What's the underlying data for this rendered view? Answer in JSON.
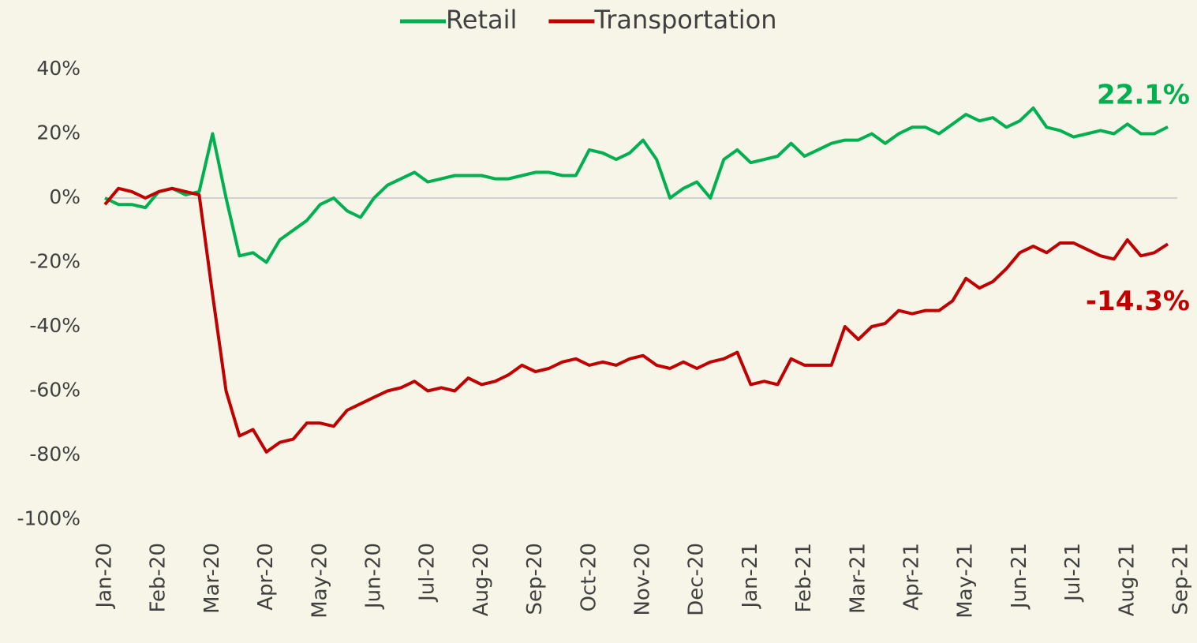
{
  "chart_data": {
    "type": "line",
    "categories": [
      "Jan-20",
      null,
      null,
      null,
      "Feb-20",
      null,
      null,
      null,
      "Mar-20",
      null,
      null,
      null,
      "Apr-20",
      null,
      null,
      null,
      "May-20",
      null,
      null,
      null,
      "Jun-20",
      null,
      null,
      null,
      "Jul-20",
      null,
      null,
      null,
      "Aug-20",
      null,
      null,
      null,
      "Sep-20",
      null,
      null,
      null,
      "Oct-20",
      null,
      null,
      null,
      "Nov-20",
      null,
      null,
      null,
      "Dec-20",
      null,
      null,
      null,
      "Jan-21",
      null,
      null,
      null,
      "Feb-21",
      null,
      null,
      null,
      "Mar-21",
      null,
      null,
      null,
      "Apr-21",
      null,
      null,
      null,
      "May-21",
      null,
      null,
      null,
      "Jun-21",
      null,
      null,
      null,
      "Jul-21",
      null,
      null,
      null,
      "Aug-21",
      null,
      null,
      null,
      "Sep-21"
    ],
    "series": [
      {
        "name": "Retail",
        "color": "#00b050",
        "values": [
          0,
          -2,
          -2,
          -3,
          2,
          3,
          1,
          2,
          20,
          0,
          -18,
          -17,
          -20,
          -13,
          -10,
          -7,
          -2,
          0,
          -4,
          -6,
          0,
          4,
          6,
          8,
          5,
          6,
          7,
          7,
          7,
          6,
          6,
          7,
          8,
          8,
          7,
          7,
          15,
          14,
          12,
          14,
          18,
          12,
          0,
          3,
          5,
          0,
          12,
          15,
          11,
          12,
          13,
          17,
          13,
          15,
          17,
          18,
          18,
          20,
          17,
          20,
          22,
          22,
          20,
          23,
          26,
          24,
          25,
          22,
          24,
          28,
          22,
          21,
          19,
          20,
          21,
          20,
          23,
          20,
          20,
          22.1,
          null
        ],
        "value_labels": [
          null,
          null,
          null,
          null,
          null,
          null,
          null,
          null,
          null,
          null,
          null,
          null,
          null,
          null,
          null,
          null,
          null,
          null,
          null,
          null,
          null,
          null,
          null,
          null,
          null,
          null,
          null,
          null,
          null,
          null,
          null,
          null,
          null,
          null,
          null,
          null,
          null,
          null,
          null,
          null,
          null,
          null,
          null,
          null,
          null,
          null,
          null,
          null,
          null,
          null,
          null,
          null,
          null,
          null,
          null,
          null,
          null,
          null,
          null,
          null,
          null,
          null,
          null,
          null,
          null,
          null,
          null,
          null,
          null,
          null,
          null,
          null,
          null,
          null,
          null,
          null,
          null,
          null,
          null,
          "22.1%",
          null
        ]
      },
      {
        "name": "Transportation",
        "color": "#c00000",
        "values": [
          -2,
          3,
          2,
          0,
          2,
          3,
          2,
          1,
          -30,
          -60,
          -74,
          -72,
          -79,
          -76,
          -75,
          -70,
          -70,
          -71,
          -66,
          -64,
          -62,
          -60,
          -59,
          -57,
          -60,
          -59,
          -60,
          -56,
          -58,
          -57,
          -55,
          -52,
          -54,
          -53,
          -51,
          -50,
          -52,
          -51,
          -52,
          -50,
          -49,
          -52,
          -53,
          -51,
          -53,
          -51,
          -50,
          -48,
          -58,
          -57,
          -58,
          -50,
          -52,
          -52,
          -52,
          -40,
          -44,
          -40,
          -39,
          -35,
          -36,
          -35,
          -35,
          -32,
          -25,
          -28,
          -26,
          -22,
          -17,
          -15,
          -17,
          -14,
          -14,
          -16,
          -18,
          -19,
          -13,
          -18,
          -17,
          -14.3,
          null
        ],
        "value_labels": [
          null,
          null,
          null,
          null,
          null,
          null,
          null,
          null,
          null,
          null,
          null,
          null,
          null,
          null,
          null,
          null,
          null,
          null,
          null,
          null,
          null,
          null,
          null,
          null,
          null,
          null,
          null,
          null,
          null,
          null,
          null,
          null,
          null,
          null,
          null,
          null,
          null,
          null,
          null,
          null,
          null,
          null,
          null,
          null,
          null,
          null,
          null,
          null,
          null,
          null,
          null,
          null,
          null,
          null,
          null,
          null,
          null,
          null,
          null,
          null,
          null,
          null,
          null,
          null,
          null,
          null,
          null,
          null,
          null,
          null,
          null,
          null,
          null,
          null,
          null,
          null,
          null,
          null,
          null,
          "-14.3%",
          null
        ]
      }
    ],
    "ylim": [
      -100,
      40
    ],
    "yticks": [
      {
        "value": -100,
        "label": "-100%"
      },
      {
        "value": -80,
        "label": "-80%"
      },
      {
        "value": -60,
        "label": "-60%"
      },
      {
        "value": -40,
        "label": "-40%"
      },
      {
        "value": -20,
        "label": "-20%"
      },
      {
        "value": 0,
        "label": "0%"
      },
      {
        "value": 20,
        "label": "20%"
      },
      {
        "value": 40,
        "label": "40%"
      }
    ],
    "legend": "top"
  }
}
